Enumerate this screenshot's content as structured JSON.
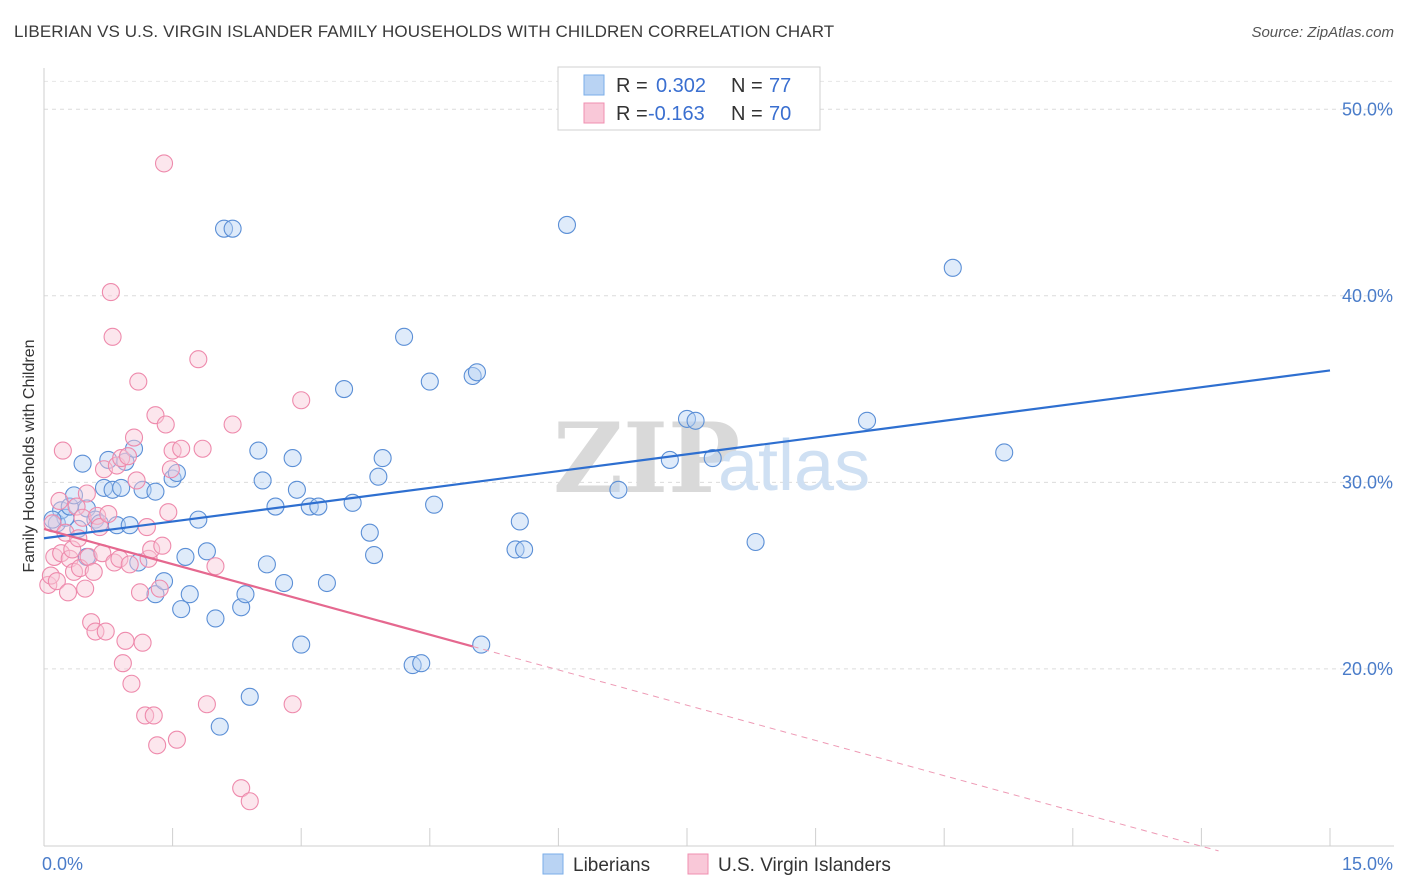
{
  "title": "LIBERIAN VS U.S. VIRGIN ISLANDER FAMILY HOUSEHOLDS WITH CHILDREN CORRELATION CHART",
  "source": "Source: ZipAtlas.com",
  "watermark": {
    "zip": "ZIP",
    "atlas": "atlas"
  },
  "legend": {
    "r_label": "R =",
    "n_label": "N =",
    "items": [
      {
        "name": "Liberians",
        "r": "0.302",
        "n": "77",
        "color": "#7aaee8",
        "fill": "#b9d3f3"
      },
      {
        "name": "U.S. Virgin Islanders",
        "r": "-0.163",
        "n": "70",
        "color": "#f08fb0",
        "fill": "#f9c8d8"
      }
    ]
  },
  "chart_data": {
    "type": "scatter",
    "ylabel": "Family Households with Children",
    "xlim": [
      0,
      15
    ],
    "ylim": [
      10.5,
      52
    ],
    "x_tick_labels": [
      {
        "value": 0,
        "label": "0.0%"
      },
      {
        "value": 15,
        "label": "15.0%"
      }
    ],
    "y_tick_labels": [
      {
        "value": 20,
        "label": "20.0%"
      },
      {
        "value": 30,
        "label": "30.0%"
      },
      {
        "value": 40,
        "label": "40.0%"
      },
      {
        "value": 50,
        "label": "50.0%"
      }
    ],
    "grid": true,
    "series": [
      {
        "name": "Liberians",
        "color": "#5b8fd6",
        "points": [
          [
            0.15,
            27.8
          ],
          [
            0.2,
            28.5
          ],
          [
            0.25,
            28.1
          ],
          [
            0.3,
            28.7
          ],
          [
            0.35,
            29.3
          ],
          [
            0.4,
            27.5
          ],
          [
            0.45,
            31.0
          ],
          [
            0.5,
            28.6
          ],
          [
            0.6,
            28.0
          ],
          [
            0.65,
            27.8
          ],
          [
            0.7,
            29.7
          ],
          [
            0.75,
            31.2
          ],
          [
            0.8,
            29.6
          ],
          [
            0.85,
            27.7
          ],
          [
            0.9,
            29.7
          ],
          [
            0.95,
            31.1
          ],
          [
            1.0,
            27.7
          ],
          [
            1.05,
            31.8
          ],
          [
            1.1,
            25.7
          ],
          [
            1.15,
            29.6
          ],
          [
            1.3,
            24.0
          ],
          [
            1.4,
            24.7
          ],
          [
            1.5,
            30.2
          ],
          [
            1.55,
            30.5
          ],
          [
            1.6,
            23.2
          ],
          [
            1.65,
            26.0
          ],
          [
            1.7,
            24.0
          ],
          [
            1.8,
            28.0
          ],
          [
            1.9,
            26.3
          ],
          [
            2.0,
            22.7
          ],
          [
            2.1,
            43.6
          ],
          [
            2.2,
            43.6
          ],
          [
            2.3,
            23.3
          ],
          [
            2.35,
            24.0
          ],
          [
            2.4,
            18.5
          ],
          [
            2.5,
            31.7
          ],
          [
            2.55,
            30.1
          ],
          [
            2.6,
            25.6
          ],
          [
            2.7,
            28.7
          ],
          [
            2.8,
            24.6
          ],
          [
            2.9,
            31.3
          ],
          [
            2.95,
            29.6
          ],
          [
            3.0,
            21.3
          ],
          [
            3.1,
            28.7
          ],
          [
            3.2,
            28.7
          ],
          [
            3.3,
            24.6
          ],
          [
            3.5,
            35.0
          ],
          [
            3.6,
            28.9
          ],
          [
            3.8,
            27.3
          ],
          [
            3.85,
            26.1
          ],
          [
            3.9,
            30.3
          ],
          [
            3.95,
            31.3
          ],
          [
            4.2,
            37.8
          ],
          [
            4.3,
            20.2
          ],
          [
            4.4,
            20.3
          ],
          [
            4.5,
            35.4
          ],
          [
            4.55,
            28.8
          ],
          [
            5.0,
            35.7
          ],
          [
            5.05,
            35.9
          ],
          [
            5.1,
            21.3
          ],
          [
            5.5,
            26.4
          ],
          [
            5.55,
            27.9
          ],
          [
            5.6,
            26.4
          ],
          [
            6.1,
            43.8
          ],
          [
            6.7,
            29.6
          ],
          [
            7.3,
            31.2
          ],
          [
            7.5,
            33.4
          ],
          [
            7.6,
            33.3
          ],
          [
            7.8,
            31.3
          ],
          [
            8.3,
            26.8
          ],
          [
            9.6,
            33.3
          ],
          [
            10.6,
            41.5
          ],
          [
            11.2,
            31.6
          ],
          [
            0.5,
            26.0
          ],
          [
            1.3,
            29.5
          ],
          [
            2.05,
            16.9
          ],
          [
            0.1,
            28.0
          ]
        ]
      },
      {
        "name": "U.S. Virgin Islanders",
        "color": "#ee8aac",
        "points": [
          [
            0.05,
            24.5
          ],
          [
            0.08,
            25.0
          ],
          [
            0.1,
            27.8
          ],
          [
            0.12,
            26.0
          ],
          [
            0.15,
            24.7
          ],
          [
            0.18,
            29.0
          ],
          [
            0.2,
            26.2
          ],
          [
            0.22,
            31.7
          ],
          [
            0.25,
            27.3
          ],
          [
            0.28,
            24.1
          ],
          [
            0.3,
            25.9
          ],
          [
            0.33,
            26.4
          ],
          [
            0.35,
            25.2
          ],
          [
            0.38,
            28.7
          ],
          [
            0.4,
            27.0
          ],
          [
            0.42,
            25.4
          ],
          [
            0.45,
            28.1
          ],
          [
            0.48,
            24.3
          ],
          [
            0.5,
            29.4
          ],
          [
            0.52,
            26.0
          ],
          [
            0.55,
            22.5
          ],
          [
            0.58,
            25.2
          ],
          [
            0.6,
            22.0
          ],
          [
            0.62,
            28.2
          ],
          [
            0.65,
            27.6
          ],
          [
            0.68,
            26.2
          ],
          [
            0.7,
            30.7
          ],
          [
            0.72,
            22.0
          ],
          [
            0.75,
            28.3
          ],
          [
            0.78,
            40.2
          ],
          [
            0.8,
            37.8
          ],
          [
            0.82,
            25.7
          ],
          [
            0.85,
            30.9
          ],
          [
            0.88,
            25.9
          ],
          [
            0.9,
            31.3
          ],
          [
            0.92,
            20.3
          ],
          [
            0.95,
            21.5
          ],
          [
            0.98,
            31.4
          ],
          [
            1.0,
            25.6
          ],
          [
            1.02,
            19.2
          ],
          [
            1.05,
            32.4
          ],
          [
            1.08,
            30.1
          ],
          [
            1.1,
            35.4
          ],
          [
            1.12,
            24.1
          ],
          [
            1.15,
            21.4
          ],
          [
            1.18,
            17.5
          ],
          [
            1.2,
            27.6
          ],
          [
            1.22,
            25.9
          ],
          [
            1.25,
            26.4
          ],
          [
            1.28,
            17.5
          ],
          [
            1.3,
            33.6
          ],
          [
            1.32,
            15.9
          ],
          [
            1.35,
            24.3
          ],
          [
            1.38,
            26.6
          ],
          [
            1.4,
            47.1
          ],
          [
            1.42,
            33.1
          ],
          [
            1.45,
            28.4
          ],
          [
            1.48,
            30.7
          ],
          [
            1.5,
            31.7
          ],
          [
            1.55,
            16.2
          ],
          [
            1.6,
            31.8
          ],
          [
            1.8,
            36.6
          ],
          [
            1.85,
            31.8
          ],
          [
            1.9,
            18.1
          ],
          [
            2.0,
            25.5
          ],
          [
            2.2,
            33.1
          ],
          [
            2.3,
            13.6
          ],
          [
            2.4,
            12.9
          ],
          [
            2.9,
            18.1
          ],
          [
            3.0,
            34.4
          ]
        ]
      }
    ],
    "trendlines": [
      {
        "series": "Liberians",
        "x": [
          0,
          15
        ],
        "y": [
          27.0,
          36.0
        ]
      },
      {
        "series": "U.S. Virgin Islanders",
        "x": [
          0,
          5.0
        ],
        "y": [
          27.5,
          21.2
        ]
      }
    ]
  }
}
